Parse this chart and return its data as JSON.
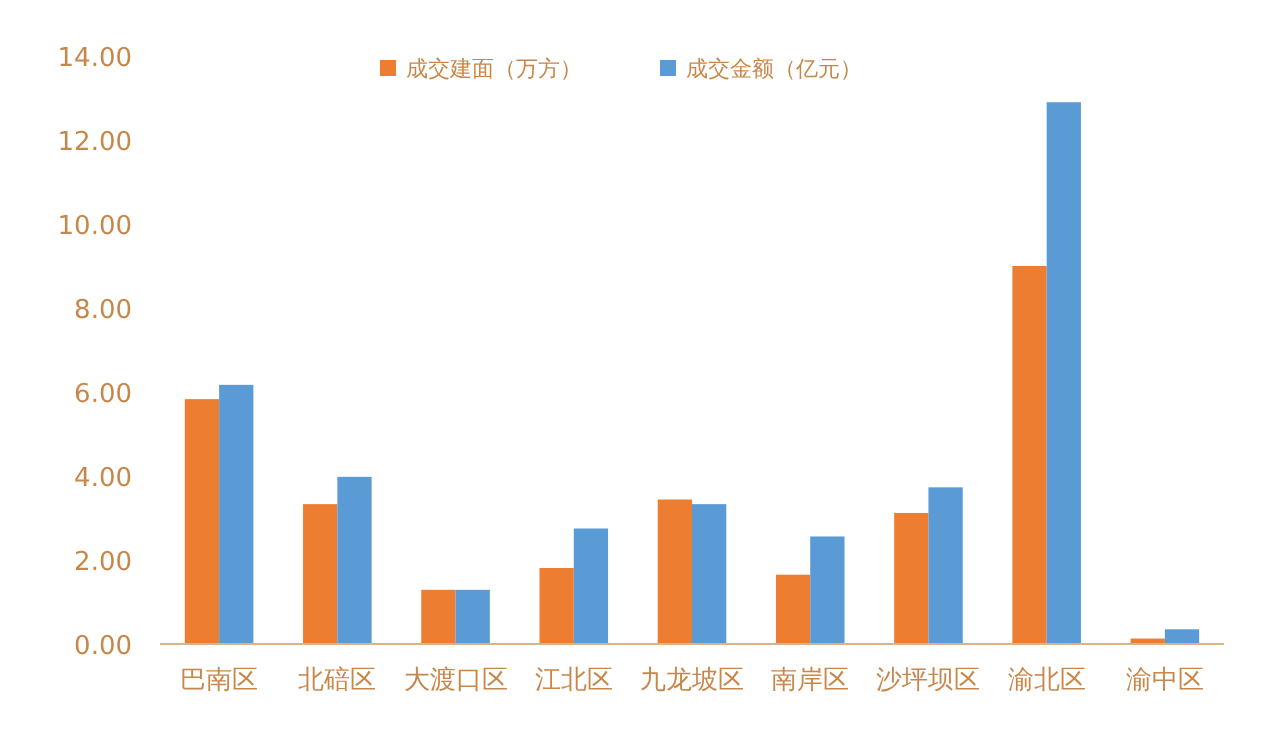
{
  "chart_data": {
    "type": "bar",
    "categories": [
      "巴南区",
      "北碚区",
      "大渡口区",
      "江北区",
      "九龙坡区",
      "南岸区",
      "沙坪坝区",
      "渝北区",
      "渝中区"
    ],
    "series": [
      {
        "name": "成交建面（万方）",
        "color": "#ed7d31",
        "values": [
          5.83,
          3.33,
          1.29,
          1.81,
          3.44,
          1.65,
          3.12,
          9.0,
          0.13
        ]
      },
      {
        "name": "成交金额（亿元）",
        "color": "#5b9bd5",
        "values": [
          6.17,
          3.98,
          1.29,
          2.75,
          3.33,
          2.56,
          3.73,
          12.9,
          0.35
        ]
      }
    ],
    "ylim": [
      0,
      14
    ],
    "yticks": [
      {
        "value": 0,
        "label": "0.00"
      },
      {
        "value": 2,
        "label": "2.00"
      },
      {
        "value": 4,
        "label": "4.00"
      },
      {
        "value": 6,
        "label": "6.00"
      },
      {
        "value": 8,
        "label": "8.00"
      },
      {
        "value": 10,
        "label": "10.00"
      },
      {
        "value": 12,
        "label": "12.00"
      },
      {
        "value": 14,
        "label": "14.00"
      }
    ],
    "grid": false,
    "legend": "top"
  }
}
